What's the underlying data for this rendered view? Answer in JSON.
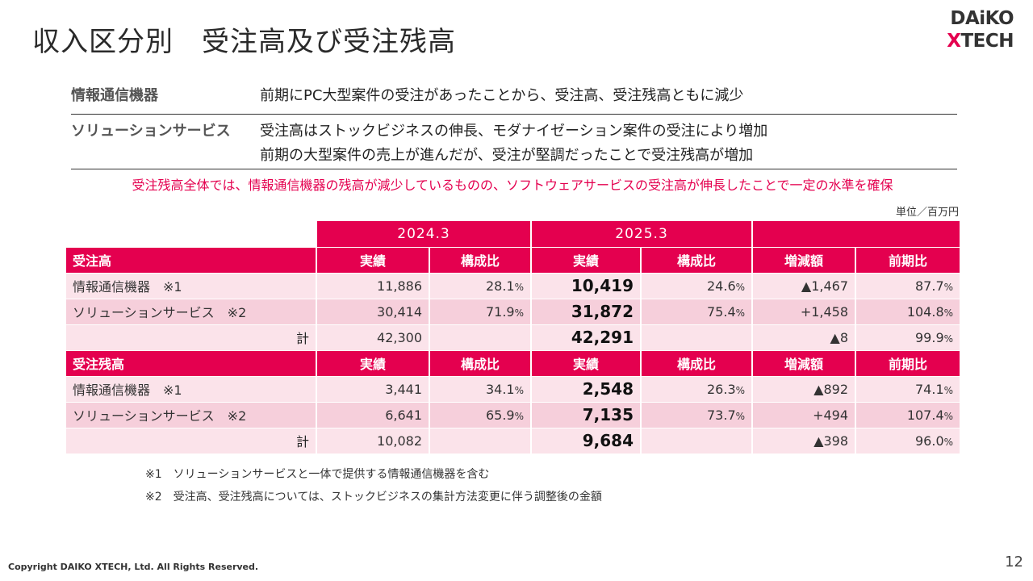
{
  "title": "収入区分別　受注高及び受注残高",
  "logo": {
    "line1": "DAiKO",
    "line2_x": "X",
    "line2_rest": "TECH"
  },
  "summary": [
    {
      "label": "情報通信機器",
      "lines": [
        "前期にPC大型案件の受注があったことから、受注高、受注残高ともに減少"
      ]
    },
    {
      "label": "ソリューションサービス",
      "lines": [
        "受注高はストックビジネスの伸長、モダナイゼーション案件の受注により増加",
        "前期の大型案件の売上が進んだが、受注が堅調だったことで受注残高が増加"
      ]
    }
  ],
  "highlight": "受注残高全体では、情報通信機器の残高が減少しているものの、ソフトウェアサービスの受注高が伸長したことで一定の水準を確保",
  "unit": "単位／百万円",
  "table": {
    "years": [
      "2024.3",
      "2025.3"
    ],
    "column_labels": {
      "actual": "実績",
      "ratio": "構成比",
      "change": "増減額",
      "yoy": "前期比"
    },
    "sections": [
      {
        "name": "受注高",
        "rows": [
          {
            "label": "情報通信機器　※1",
            "a2024": "11,886",
            "r2024": "28.1",
            "a2025": "10,419",
            "r2025": "24.6",
            "change": "▲1,467",
            "yoy": "87.7"
          },
          {
            "label": "ソリューションサービス　※2",
            "a2024": "30,414",
            "r2024": "71.9",
            "a2025": "31,872",
            "r2025": "75.4",
            "change": "+1,458",
            "yoy": "104.8"
          },
          {
            "label": "計",
            "a2024": "42,300",
            "r2024": "",
            "a2025": "42,291",
            "r2025": "",
            "change": "▲8",
            "yoy": "99.9"
          }
        ]
      },
      {
        "name": "受注残高",
        "rows": [
          {
            "label": "情報通信機器　※1",
            "a2024": "3,441",
            "r2024": "34.1",
            "a2025": "2,548",
            "r2025": "26.3",
            "change": "▲892",
            "yoy": "74.1"
          },
          {
            "label": "ソリューションサービス　※2",
            "a2024": "6,641",
            "r2024": "65.9",
            "a2025": "7,135",
            "r2025": "73.7",
            "change": "+494",
            "yoy": "107.4"
          },
          {
            "label": "計",
            "a2024": "10,082",
            "r2024": "",
            "a2025": "9,684",
            "r2025": "",
            "change": "▲398",
            "yoy": "96.0"
          }
        ]
      }
    ],
    "percent_sign": "%"
  },
  "notes": [
    "※1　ソリューションサービスと一体で提供する情報通信機器を含む",
    "※2　受注高、受注残高については、ストックビジネスの集計方法変更に伴う調整後の金額"
  ],
  "copyright": "Copyright DAIKO XTECH, Ltd. All Rights Reserved.",
  "page_number": "12"
}
